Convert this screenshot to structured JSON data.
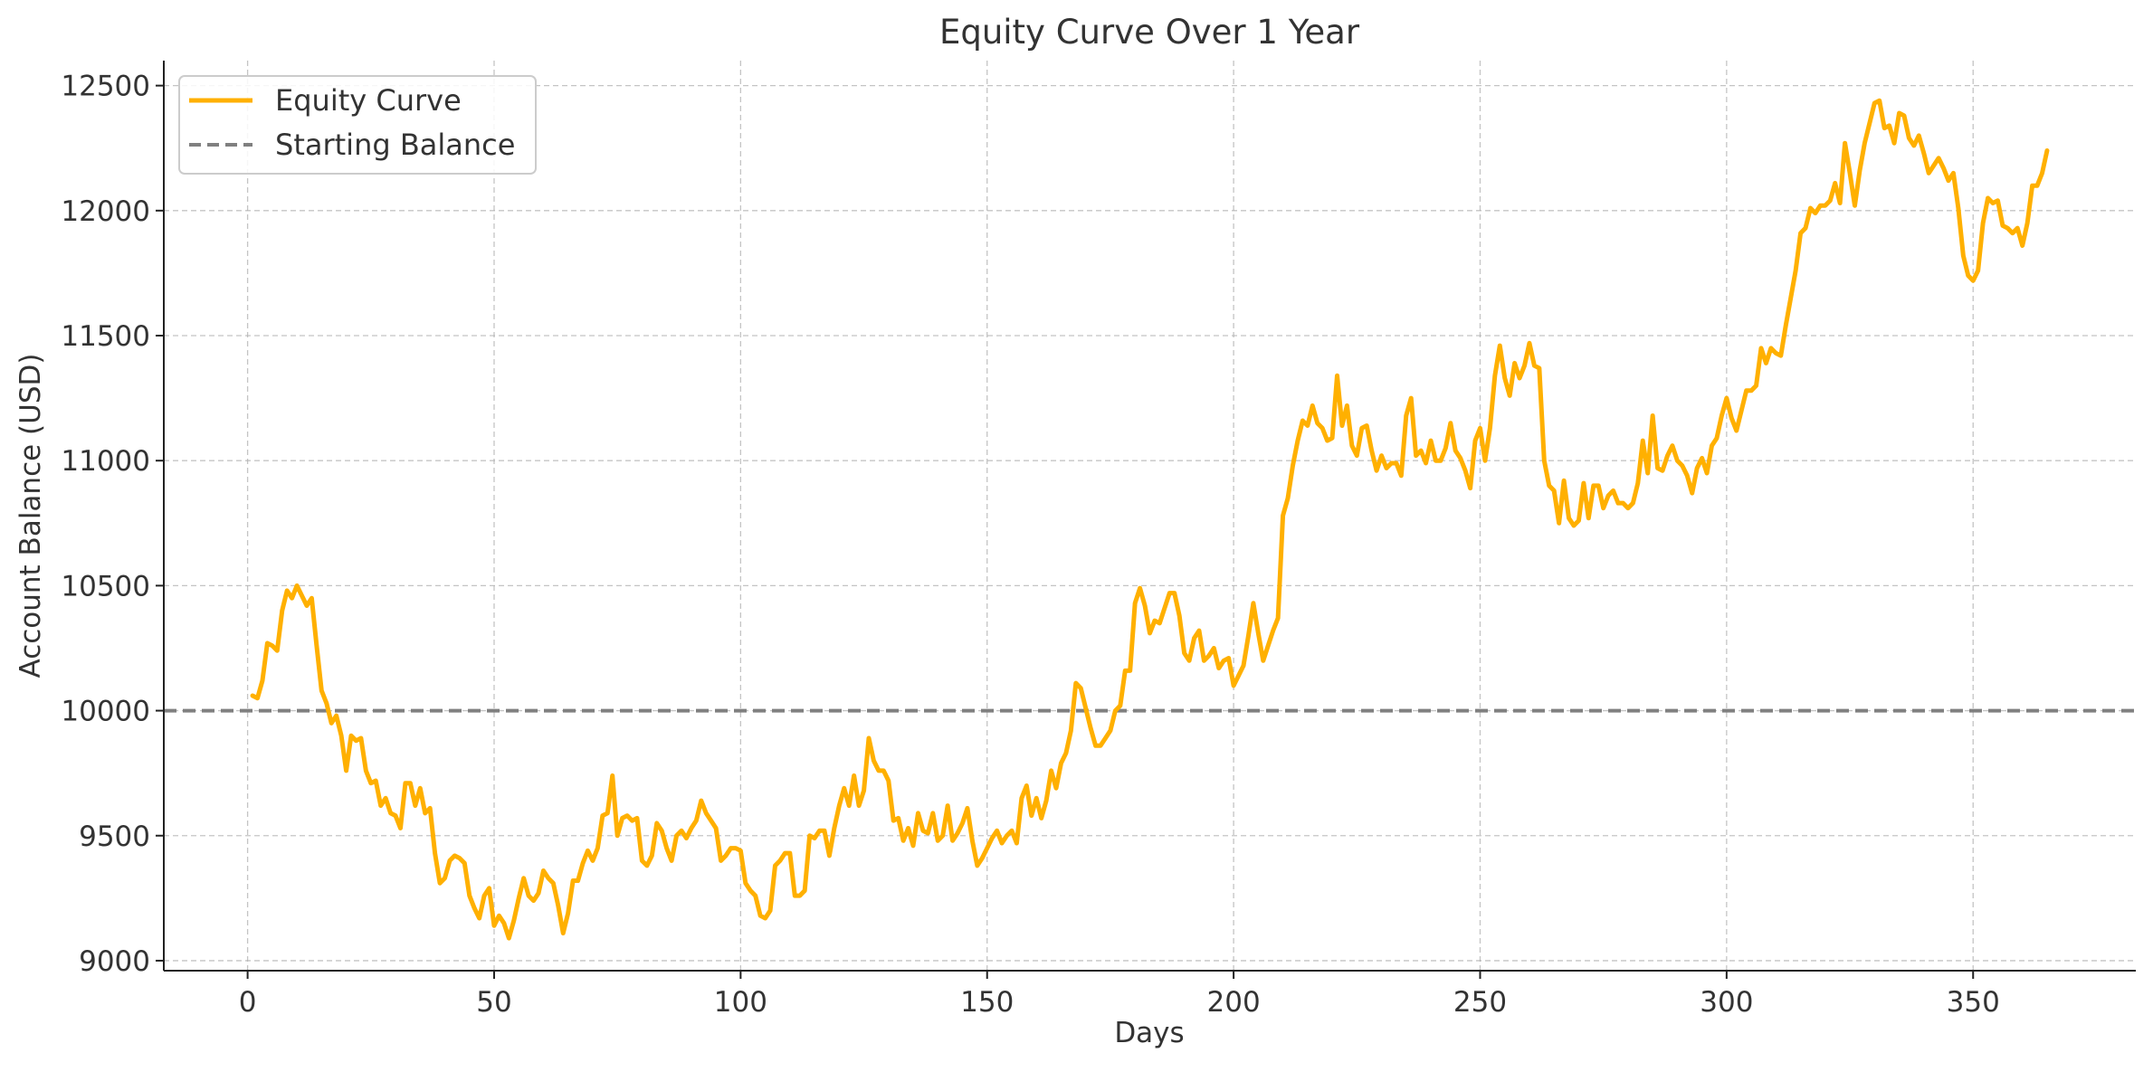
{
  "chart_data": {
    "type": "line",
    "title": "Equity Curve Over 1 Year",
    "xlabel": "Days",
    "ylabel": "Account Balance (USD)",
    "xlim": [
      -17,
      383
    ],
    "ylim": [
      8960,
      12600
    ],
    "xticks": [
      0,
      50,
      100,
      150,
      200,
      250,
      300,
      350
    ],
    "yticks": [
      9000,
      9500,
      10000,
      10500,
      11000,
      11500,
      12000,
      12500
    ],
    "grid": true,
    "legend_position": "top-left",
    "series": [
      {
        "name": "Equity Curve",
        "color": "#ffb000",
        "style": "solid",
        "x": [
          1,
          2,
          3,
          4,
          5,
          6,
          7,
          8,
          9,
          10,
          11,
          12,
          13,
          14,
          15,
          16,
          17,
          18,
          19,
          20,
          21,
          22,
          23,
          24,
          25,
          26,
          27,
          28,
          29,
          30,
          31,
          32,
          33,
          34,
          35,
          36,
          37,
          38,
          39,
          40,
          41,
          42,
          43,
          44,
          45,
          46,
          47,
          48,
          49,
          50,
          51,
          52,
          53,
          54,
          55,
          56,
          57,
          58,
          59,
          60,
          61,
          62,
          63,
          64,
          65,
          66,
          67,
          68,
          69,
          70,
          71,
          72,
          73,
          74,
          75,
          76,
          77,
          78,
          79,
          80,
          81,
          82,
          83,
          84,
          85,
          86,
          87,
          88,
          89,
          90,
          91,
          92,
          93,
          94,
          95,
          96,
          97,
          98,
          99,
          100,
          101,
          102,
          103,
          104,
          105,
          106,
          107,
          108,
          109,
          110,
          111,
          112,
          113,
          114,
          115,
          116,
          117,
          118,
          119,
          120,
          121,
          122,
          123,
          124,
          125,
          126,
          127,
          128,
          129,
          130,
          131,
          132,
          133,
          134,
          135,
          136,
          137,
          138,
          139,
          140,
          141,
          142,
          143,
          144,
          145,
          146,
          147,
          148,
          149,
          150,
          151,
          152,
          153,
          154,
          155,
          156,
          157,
          158,
          159,
          160,
          161,
          162,
          163,
          164,
          165,
          166,
          167,
          168,
          169,
          170,
          171,
          172,
          173,
          174,
          175,
          176,
          177,
          178,
          179,
          180,
          181,
          182,
          183,
          184,
          185,
          186,
          187,
          188,
          189,
          190,
          191,
          192,
          193,
          194,
          195,
          196,
          197,
          198,
          199,
          200,
          201,
          202,
          203,
          204,
          205,
          206,
          207,
          208,
          209,
          210,
          211,
          212,
          213,
          214,
          215,
          216,
          217,
          218,
          219,
          220,
          221,
          222,
          223,
          224,
          225,
          226,
          227,
          228,
          229,
          230,
          231,
          232,
          233,
          234,
          235,
          236,
          237,
          238,
          239,
          240,
          241,
          242,
          243,
          244,
          245,
          246,
          247,
          248,
          249,
          250,
          251,
          252,
          253,
          254,
          255,
          256,
          257,
          258,
          259,
          260,
          261,
          262,
          263,
          264,
          265,
          266,
          267,
          268,
          269,
          270,
          271,
          272,
          273,
          274,
          275,
          276,
          277,
          278,
          279,
          280,
          281,
          282,
          283,
          284,
          285,
          286,
          287,
          288,
          289,
          290,
          291,
          292,
          293,
          294,
          295,
          296,
          297,
          298,
          299,
          300,
          301,
          302,
          303,
          304,
          305,
          306,
          307,
          308,
          309,
          310,
          311,
          312,
          313,
          314,
          315,
          316,
          317,
          318,
          319,
          320,
          321,
          322,
          323,
          324,
          325,
          326,
          327,
          328,
          329,
          330,
          331,
          332,
          333,
          334,
          335,
          336,
          337,
          338,
          339,
          340,
          341,
          342,
          343,
          344,
          345,
          346,
          347,
          348,
          349,
          350,
          351,
          352,
          353,
          354,
          355,
          356,
          357,
          358,
          359,
          360,
          361,
          362,
          363,
          364,
          365
        ],
        "y": [
          10060,
          10050,
          10120,
          10270,
          10260,
          10240,
          10400,
          10480,
          10450,
          10500,
          10460,
          10420,
          10450,
          10260,
          10080,
          10030,
          9950,
          9980,
          9900,
          9760,
          9900,
          9880,
          9890,
          9760,
          9710,
          9720,
          9620,
          9650,
          9590,
          9580,
          9530,
          9710,
          9710,
          9620,
          9690,
          9590,
          9610,
          9430,
          9310,
          9330,
          9400,
          9420,
          9410,
          9390,
          9260,
          9210,
          9170,
          9260,
          9290,
          9140,
          9180,
          9150,
          9090,
          9160,
          9250,
          9330,
          9260,
          9240,
          9270,
          9360,
          9330,
          9310,
          9220,
          9110,
          9190,
          9320,
          9320,
          9390,
          9440,
          9400,
          9450,
          9580,
          9590,
          9740,
          9500,
          9570,
          9580,
          9560,
          9570,
          9400,
          9380,
          9420,
          9550,
          9520,
          9450,
          9400,
          9500,
          9520,
          9490,
          9530,
          9560,
          9640,
          9590,
          9560,
          9530,
          9400,
          9420,
          9450,
          9450,
          9440,
          9310,
          9280,
          9260,
          9180,
          9170,
          9200,
          9380,
          9400,
          9430,
          9430,
          9260,
          9260,
          9280,
          9500,
          9490,
          9520,
          9520,
          9420,
          9530,
          9620,
          9690,
          9620,
          9740,
          9620,
          9680,
          9890,
          9800,
          9760,
          9760,
          9720,
          9560,
          9570,
          9480,
          9530,
          9460,
          9590,
          9520,
          9510,
          9590,
          9480,
          9500,
          9620,
          9480,
          9510,
          9550,
          9610,
          9480,
          9380,
          9410,
          9450,
          9490,
          9520,
          9470,
          9500,
          9520,
          9470,
          9650,
          9700,
          9580,
          9650,
          9570,
          9640,
          9760,
          9690,
          9790,
          9830,
          9920,
          10110,
          10090,
          10010,
          9930,
          9860,
          9860,
          9890,
          9920,
          10000,
          10020,
          10160,
          10160,
          10430,
          10490,
          10420,
          10310,
          10360,
          10350,
          10410,
          10470,
          10470,
          10380,
          10230,
          10200,
          10290,
          10320,
          10200,
          10220,
          10250,
          10170,
          10200,
          10210,
          10100,
          10140,
          10180,
          10300,
          10430,
          10310,
          10200,
          10260,
          10320,
          10370,
          10780,
          10850,
          10980,
          11080,
          11160,
          11140,
          11220,
          11150,
          11130,
          11080,
          11090,
          11340,
          11140,
          11220,
          11060,
          11020,
          11130,
          11140,
          11040,
          10960,
          11020,
          10970,
          10990,
          10990,
          10940,
          11180,
          11250,
          11020,
          11040,
          10990,
          11080,
          11000,
          11000,
          11050,
          11150,
          11040,
          11010,
          10960,
          10890,
          11080,
          11130,
          11000,
          11130,
          11340,
          11460,
          11330,
          11260,
          11390,
          11330,
          11380,
          11470,
          11380,
          11370,
          11000,
          10900,
          10880,
          10750,
          10920,
          10770,
          10740,
          10760,
          10910,
          10770,
          10900,
          10900,
          10810,
          10860,
          10880,
          10830,
          10830,
          10810,
          10830,
          10910,
          11080,
          10950,
          11180,
          10970,
          10960,
          11020,
          11060,
          11000,
          10980,
          10940,
          10870,
          10970,
          11010,
          10950,
          11060,
          11090,
          11180,
          11250,
          11170,
          11120,
          11200,
          11280,
          11280,
          11300,
          11450,
          11390,
          11450,
          11430,
          11420,
          11540,
          11650,
          11760,
          11910,
          11930,
          12010,
          11990,
          12020,
          12020,
          12040,
          12110,
          12030,
          12270,
          12150,
          12020,
          12160,
          12270,
          12350,
          12430,
          12440,
          12330,
          12340,
          12270,
          12390,
          12380,
          12290,
          12260,
          12300,
          12230,
          12150,
          12180,
          12210,
          12170,
          12120,
          12150,
          12010,
          11820,
          11740,
          11720,
          11760,
          11950,
          12050,
          12030,
          12040,
          11940,
          11930,
          11910,
          11930,
          11860,
          11950,
          12100,
          12100,
          12150,
          12240
        ]
      },
      {
        "name": "Starting Balance",
        "color": "#808080",
        "style": "dashed",
        "y": [
          10000
        ]
      }
    ]
  }
}
